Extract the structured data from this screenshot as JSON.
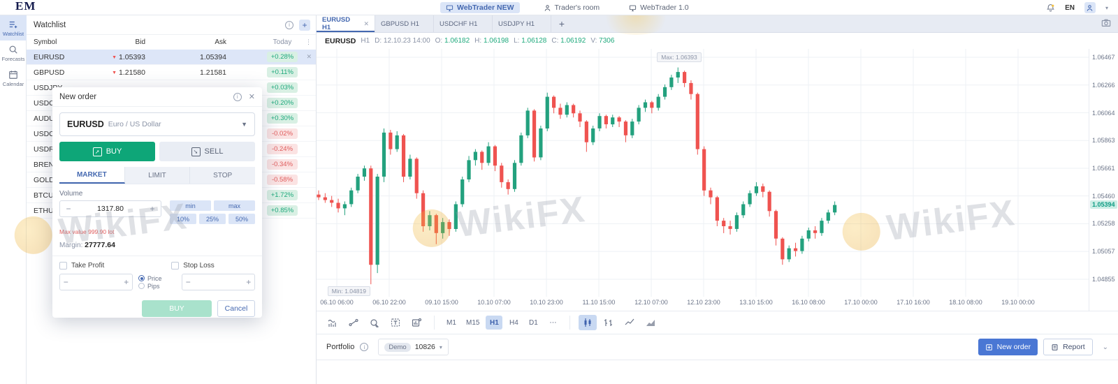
{
  "colors": {
    "accent": "#4468b0",
    "green": "#23a17e",
    "red": "#ef5350",
    "badge_green": "#1ea97c",
    "badge_red": "#e05c5c"
  },
  "topbar": {
    "logo": "EM",
    "nav": [
      {
        "label": "WebTrader NEW",
        "icon": "monitor-icon",
        "active": true
      },
      {
        "label": "Trader's room",
        "icon": "user-icon",
        "active": false
      },
      {
        "label": "WebTrader 1.0",
        "icon": "monitor-icon",
        "active": false
      }
    ],
    "lang": "EN"
  },
  "sidebar": {
    "items": [
      {
        "label": "Watchlist",
        "icon": "watchlist-icon",
        "active": true
      },
      {
        "label": "Forecasts",
        "icon": "forecasts-icon",
        "active": false
      },
      {
        "label": "Calendar",
        "icon": "calendar-icon",
        "active": false
      }
    ]
  },
  "watchlist": {
    "title": "Watchlist",
    "columns": {
      "symbol": "Symbol",
      "bid": "Bid",
      "ask": "Ask",
      "today": "Today"
    },
    "rows": [
      {
        "symbol": "EURUSD",
        "bid": "1.05393",
        "bid_dir": "down",
        "ask": "1.05394",
        "today": "+0.28%",
        "trend": "up",
        "selected": true
      },
      {
        "symbol": "GBPUSD",
        "bid": "1.21580",
        "bid_dir": "down",
        "ask": "1.21581",
        "today": "+0.11%",
        "trend": "up",
        "selected": false
      },
      {
        "symbol": "USDJPY",
        "bid": "",
        "bid_dir": "",
        "ask": "",
        "today": "+0.03%",
        "trend": "up",
        "selected": false
      },
      {
        "symbol": "USDCHF",
        "bid": "",
        "bid_dir": "",
        "ask": "",
        "today": "+0.20%",
        "trend": "up",
        "selected": false
      },
      {
        "symbol": "AUDUSD",
        "bid": "",
        "bid_dir": "",
        "ask": "",
        "today": "+0.30%",
        "trend": "up",
        "selected": false
      },
      {
        "symbol": "USDCAD",
        "bid": "",
        "bid_dir": "",
        "ask": "",
        "today": "-0.02%",
        "trend": "down",
        "selected": false
      },
      {
        "symbol": "USDRUB",
        "bid": "",
        "bid_dir": "",
        "ask": "",
        "today": "-0.24%",
        "trend": "down",
        "selected": false
      },
      {
        "symbol": "BRENT",
        "bid": "",
        "bid_dir": "",
        "ask": "",
        "today": "-0.34%",
        "trend": "down",
        "selected": false
      },
      {
        "symbol": "GOLD",
        "bid": "",
        "bid_dir": "",
        "ask": "",
        "today": "-0.58%",
        "trend": "down",
        "selected": false
      },
      {
        "symbol": "BTCUSD",
        "bid": "",
        "bid_dir": "",
        "ask": "",
        "today": "+1.72%",
        "trend": "up",
        "selected": false
      },
      {
        "symbol": "ETHUSD",
        "bid": "",
        "bid_dir": "",
        "ask": "",
        "today": "+0.85%",
        "trend": "up",
        "selected": false
      }
    ]
  },
  "modal": {
    "title": "New order",
    "symbol": "EURUSD",
    "symbol_name": "Euro / US Dollar",
    "buy_label": "BUY",
    "sell_label": "SELL",
    "tabs": [
      "MARKET",
      "LIMIT",
      "STOP"
    ],
    "active_tab": "MARKET",
    "volume_label": "Volume",
    "volume_value": "1317.80",
    "presets": [
      "min",
      "max",
      "10%",
      "25%",
      "50%"
    ],
    "max_value_note": "Max value 999.90 lot",
    "margin_label": "Margin:",
    "margin_value": "27777.64",
    "take_profit_label": "Take Profit",
    "stop_loss_label": "Stop Loss",
    "price_label": "Price",
    "pips_label": "Pips",
    "submit_label": "BUY",
    "cancel_label": "Cancel"
  },
  "chart": {
    "tabs": [
      {
        "label": "EURUSD H1",
        "active": true
      },
      {
        "label": "GBPUSD H1",
        "active": false
      },
      {
        "label": "USDCHF H1",
        "active": false
      },
      {
        "label": "USDJPY H1",
        "active": false
      }
    ],
    "info": {
      "symbol": "EURUSD",
      "timeframe": "H1",
      "date_label": "D:",
      "date": "12.10.23 14:00",
      "o_label": "O:",
      "o": "1.06182",
      "h_label": "H:",
      "h": "1.06198",
      "l_label": "L:",
      "l": "1.06128",
      "c_label": "C:",
      "c": "1.06192",
      "v_label": "V:",
      "v": "7306"
    },
    "timeframes": [
      "M1",
      "M15",
      "H1",
      "H4",
      "D1"
    ],
    "active_timeframe": "H1",
    "more_label": "⋯"
  },
  "chart_data": {
    "type": "candlestick",
    "title": "EURUSD H1",
    "ylim": [
      1.04728,
      1.06528
    ],
    "y_ticks": [
      {
        "label": "1.06467",
        "value": 1.06467
      },
      {
        "label": "1.06266",
        "value": 1.06266
      },
      {
        "label": "1.06064",
        "value": 1.06064
      },
      {
        "label": "1.05863",
        "value": 1.05863
      },
      {
        "label": "1.05661",
        "value": 1.05661
      },
      {
        "label": "1.05460",
        "value": 1.0546
      },
      {
        "label": "1.05258",
        "value": 1.05258
      },
      {
        "label": "1.05057",
        "value": 1.05057
      },
      {
        "label": "1.04855",
        "value": 1.04855
      }
    ],
    "current_price": {
      "label": "1.05394",
      "value": 1.05394
    },
    "x_ticks": [
      "06.10 06:00",
      "06.10 22:00",
      "09.10 15:00",
      "10.10 07:00",
      "10.10 23:00",
      "11.10 15:00",
      "12.10 07:00",
      "12.10 23:00",
      "13.10 15:00",
      "16.10 08:00",
      "17.10 00:00",
      "17.10 16:00",
      "18.10 08:00",
      "19.10 00:00"
    ],
    "max_label": {
      "text": "Max: 1.06393",
      "value": 1.06393,
      "candle_index": 55
    },
    "min_label": {
      "text": "Min: 1.04819",
      "value": 1.04819,
      "candle_index": 8
    },
    "candles": [
      [
        1.0547,
        1.055,
        1.0543,
        1.0545
      ],
      [
        1.0545,
        1.0548,
        1.0541,
        1.0543
      ],
      [
        1.0543,
        1.0546,
        1.0538,
        1.0541
      ],
      [
        1.0541,
        1.0544,
        1.0534,
        1.0537
      ],
      [
        1.0537,
        1.0542,
        1.0532,
        1.054
      ],
      [
        1.054,
        1.0552,
        1.0538,
        1.055
      ],
      [
        1.055,
        1.0562,
        1.0548,
        1.056
      ],
      [
        1.056,
        1.0568,
        1.0557,
        1.0566
      ],
      [
        1.0566,
        1.0568,
        1.04819,
        1.0496
      ],
      [
        1.0496,
        1.0562,
        1.049,
        1.056
      ],
      [
        1.056,
        1.0595,
        1.0556,
        1.0592
      ],
      [
        1.0592,
        1.0594,
        1.0576,
        1.058
      ],
      [
        1.058,
        1.0593,
        1.0578,
        1.059
      ],
      [
        1.059,
        1.0591,
        1.0556,
        1.056
      ],
      [
        1.056,
        1.0576,
        1.0558,
        1.0573
      ],
      [
        1.0573,
        1.0574,
        1.0544,
        1.0548
      ],
      [
        1.0548,
        1.055,
        1.052,
        1.0524
      ],
      [
        1.0524,
        1.0535,
        1.0521,
        1.0532
      ],
      [
        1.0532,
        1.0533,
        1.0511,
        1.0519
      ],
      [
        1.0519,
        1.053,
        1.0515,
        1.0527
      ],
      [
        1.0527,
        1.0529,
        1.0517,
        1.0522
      ],
      [
        1.0522,
        1.0542,
        1.052,
        1.054
      ],
      [
        1.054,
        1.056,
        1.0538,
        1.0558
      ],
      [
        1.0558,
        1.0575,
        1.0556,
        1.0572
      ],
      [
        1.0572,
        1.058,
        1.0568,
        1.0578
      ],
      [
        1.0578,
        1.0579,
        1.0565,
        1.057
      ],
      [
        1.057,
        1.0585,
        1.0568,
        1.0582
      ],
      [
        1.0582,
        1.0583,
        1.0564,
        1.0568
      ],
      [
        1.0568,
        1.057,
        1.0552,
        1.0556
      ],
      [
        1.0556,
        1.0558,
        1.0547,
        1.0551
      ],
      [
        1.0551,
        1.0572,
        1.0549,
        1.057
      ],
      [
        1.057,
        1.0592,
        1.0568,
        1.059
      ],
      [
        1.059,
        1.061,
        1.0588,
        1.0608
      ],
      [
        1.0608,
        1.0609,
        1.0571,
        1.0574
      ],
      [
        1.0574,
        1.0597,
        1.0572,
        1.0595
      ],
      [
        1.0595,
        1.0621,
        1.0593,
        1.0618
      ],
      [
        1.0618,
        1.0619,
        1.0606,
        1.061
      ],
      [
        1.061,
        1.0613,
        1.0602,
        1.0605
      ],
      [
        1.0605,
        1.0614,
        1.0603,
        1.0612
      ],
      [
        1.0612,
        1.0613,
        1.0603,
        1.0606
      ],
      [
        1.0606,
        1.0608,
        1.0596,
        1.06
      ],
      [
        1.06,
        1.0601,
        1.0578,
        1.0585
      ],
      [
        1.0585,
        1.0597,
        1.0583,
        1.0595
      ],
      [
        1.0595,
        1.0606,
        1.0593,
        1.0604
      ],
      [
        1.0604,
        1.0605,
        1.0595,
        1.0598
      ],
      [
        1.0598,
        1.0605,
        1.0596,
        1.0603
      ],
      [
        1.0603,
        1.0604,
        1.0596,
        1.06
      ],
      [
        1.06,
        1.0601,
        1.0585,
        1.059
      ],
      [
        1.059,
        1.0602,
        1.0588,
        1.06
      ],
      [
        1.06,
        1.0612,
        1.0598,
        1.061
      ],
      [
        1.061,
        1.0616,
        1.0607,
        1.0614
      ],
      [
        1.0614,
        1.0615,
        1.0606,
        1.061
      ],
      [
        1.061,
        1.062,
        1.0608,
        1.0618
      ],
      [
        1.0618,
        1.0627,
        1.0616,
        1.0625
      ],
      [
        1.0625,
        1.0634,
        1.0623,
        1.0632
      ],
      [
        1.0632,
        1.06393,
        1.0628,
        1.0636
      ],
      [
        1.0636,
        1.0637,
        1.0625,
        1.0628
      ],
      [
        1.0628,
        1.063,
        1.0616,
        1.062
      ],
      [
        1.062,
        1.0621,
        1.0576,
        1.058
      ],
      [
        1.058,
        1.0582,
        1.0546,
        1.055
      ],
      [
        1.055,
        1.0552,
        1.054,
        1.0545
      ],
      [
        1.0545,
        1.0546,
        1.0524,
        1.0528
      ],
      [
        1.0528,
        1.053,
        1.0519,
        1.0524
      ],
      [
        1.0524,
        1.0528,
        1.0518,
        1.0522
      ],
      [
        1.0522,
        1.0534,
        1.052,
        1.0532
      ],
      [
        1.0532,
        1.0542,
        1.053,
        1.054
      ],
      [
        1.054,
        1.055,
        1.0538,
        1.0548
      ],
      [
        1.0548,
        1.0556,
        1.0546,
        1.0553
      ],
      [
        1.0553,
        1.0555,
        1.0545,
        1.0549
      ],
      [
        1.0549,
        1.055,
        1.0531,
        1.0535
      ],
      [
        1.0535,
        1.0536,
        1.051,
        1.0515
      ],
      [
        1.0515,
        1.0516,
        1.0496,
        1.05
      ],
      [
        1.05,
        1.051,
        1.0498,
        1.0508
      ],
      [
        1.0508,
        1.0512,
        1.0502,
        1.0506
      ],
      [
        1.0506,
        1.0517,
        1.0504,
        1.0515
      ],
      [
        1.0515,
        1.0523,
        1.0513,
        1.0521
      ],
      [
        1.0521,
        1.0524,
        1.0515,
        1.0519
      ],
      [
        1.0519,
        1.053,
        1.0517,
        1.0528
      ],
      [
        1.0528,
        1.0536,
        1.0526,
        1.0534
      ],
      [
        1.0534,
        1.0542,
        1.0532,
        1.05394
      ]
    ],
    "grid": true,
    "legend": "none"
  },
  "portfolio": {
    "label": "Portfolio",
    "account_badge": "Demo",
    "account_id": "10826",
    "new_order_label": "New order",
    "report_label": "Report"
  },
  "watermark": {
    "text": "WikiFX"
  }
}
